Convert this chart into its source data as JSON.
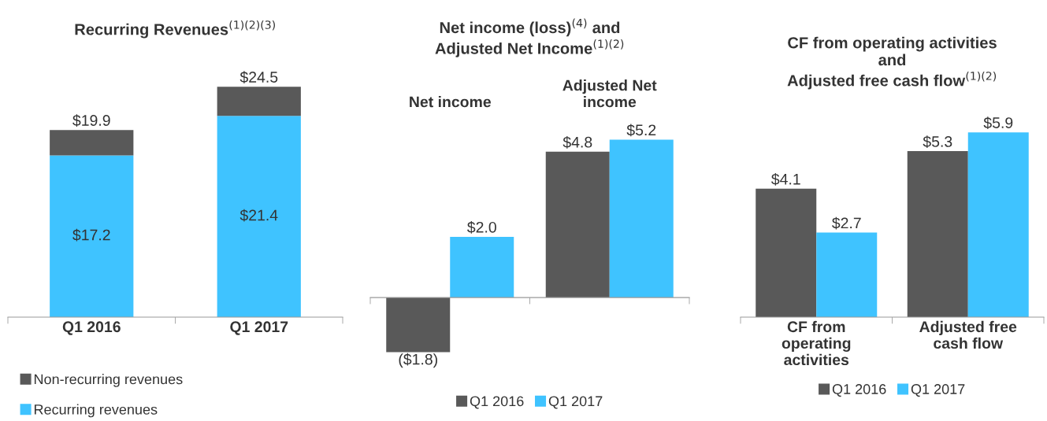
{
  "chart_data": [
    {
      "type": "bar",
      "title": "Recurring Revenues$^{(1)(2)(3)}$",
      "categories": [
        "Q1 2016",
        "Q1 2017"
      ],
      "stacked": true,
      "tick_labels": "x",
      "legend": "bottom left",
      "series": [
        {
          "name": "Recurring revenues",
          "color": "#3fc3ff",
          "values": [
            17.2,
            21.4
          ],
          "value_labels": [
            "$17.2",
            "$21.4"
          ]
        },
        {
          "name": "Non-recurring revenues",
          "color": "#595959",
          "values": [
            2.7,
            3.1
          ],
          "value_labels": [
            null,
            null
          ]
        }
      ],
      "totals": [
        "$19.9",
        "$24.5"
      ]
    },
    {
      "type": "bar",
      "title": "Net income (loss)$^{(4)}$ and\nAdjusted Net Income$^{(1)(2)}$",
      "categories": [
        "Net income",
        "Adjusted Net\nincome"
      ],
      "tick_labels": "x",
      "legend": "bottom",
      "series": [
        {
          "name": "Q1 2016",
          "color": "#595959",
          "values": [
            -1.8,
            4.8
          ],
          "value_labels": [
            "($1.8)",
            "$4.8"
          ]
        },
        {
          "name": "Q1 2017",
          "color": "#3fc3ff",
          "values": [
            2.0,
            5.2
          ],
          "value_labels": [
            "$2.0",
            "$5.2"
          ]
        }
      ]
    },
    {
      "type": "bar",
      "title": "CF from operating activities\nand\nAdjusted free cash flow$^{(1)(2)}$",
      "categories": [
        "CF from\noperating\nactivities",
        "Adjusted free\ncash flow"
      ],
      "tick_labels": "x",
      "legend": "bottom",
      "series": [
        {
          "name": "Q1 2016",
          "color": "#595959",
          "values": [
            4.1,
            5.3
          ],
          "value_labels": [
            "$4.1",
            "$5.3"
          ]
        },
        {
          "name": "Q1 2017",
          "color": "#3fc3ff",
          "values": [
            2.7,
            5.9
          ],
          "value_labels": [
            "$2.7",
            "$5.9"
          ]
        }
      ]
    }
  ]
}
